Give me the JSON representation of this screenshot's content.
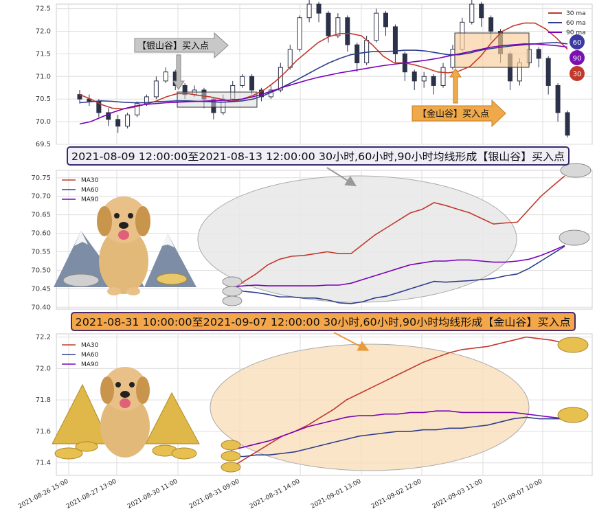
{
  "chart_data": [
    {
      "type": "candlestick",
      "yticks": [
        "72.5",
        "72.0",
        "71.5",
        "71.0",
        "70.5",
        "70.0",
        "69.5"
      ],
      "ylim": [
        69.5,
        72.6
      ],
      "legend": [
        "30 ma",
        "60 ma",
        "90 ma"
      ],
      "legend_position": "top-right",
      "series_colors": {
        "ma30": "#c0392b",
        "ma60": "#2e3e8c",
        "ma90": "#7a00b8"
      },
      "ma30": [
        70.6,
        70.5,
        70.38,
        70.3,
        70.28,
        70.32,
        70.38,
        70.45,
        70.55,
        70.62,
        70.62,
        70.58,
        70.55,
        70.5,
        70.45,
        70.5,
        70.58,
        70.7,
        70.88,
        71.1,
        71.35,
        71.55,
        71.75,
        71.88,
        71.95,
        71.95,
        71.9,
        71.7,
        71.45,
        71.3,
        71.3,
        71.25,
        71.18,
        71.1,
        71.08,
        71.12,
        71.22,
        71.45,
        71.75,
        72.0,
        72.12,
        72.18,
        72.18,
        72.05,
        71.85,
        71.6
      ],
      "ma60": [
        70.42,
        70.44,
        70.46,
        70.45,
        70.43,
        70.42,
        70.42,
        70.44,
        70.45,
        70.46,
        70.46,
        70.45,
        70.44,
        70.43,
        70.44,
        70.46,
        70.5,
        70.58,
        70.68,
        70.8,
        70.92,
        71.05,
        71.18,
        71.3,
        71.4,
        71.48,
        71.52,
        71.55,
        71.55,
        71.56,
        71.58,
        71.58,
        71.56,
        71.52,
        71.48,
        71.48,
        71.52,
        71.58,
        71.62,
        71.65,
        71.68,
        71.7,
        71.72,
        71.74,
        71.75,
        71.72
      ],
      "ma90": [
        69.95,
        70.0,
        70.1,
        70.2,
        70.28,
        70.34,
        70.38,
        70.4,
        70.42,
        70.43,
        70.44,
        70.45,
        70.46,
        70.47,
        70.48,
        70.5,
        70.55,
        70.62,
        70.7,
        70.78,
        70.85,
        70.92,
        70.98,
        71.03,
        71.08,
        71.12,
        71.16,
        71.2,
        71.24,
        71.27,
        71.3,
        71.33,
        71.36,
        71.4,
        71.45,
        71.5,
        71.55,
        71.6,
        71.65,
        71.68,
        71.7,
        71.72,
        71.72,
        71.7,
        71.68,
        71.65
      ],
      "candles": [
        [
          70.6,
          70.5,
          70.7,
          70.4
        ],
        [
          70.5,
          70.45,
          70.6,
          70.35
        ],
        [
          70.45,
          70.2,
          70.5,
          70.1
        ],
        [
          70.2,
          70.05,
          70.3,
          69.9
        ],
        [
          70.05,
          69.9,
          70.15,
          69.75
        ],
        [
          69.9,
          70.15,
          70.2,
          69.85
        ],
        [
          70.15,
          70.4,
          70.45,
          70.1
        ],
        [
          70.4,
          70.55,
          70.6,
          70.35
        ],
        [
          70.55,
          70.9,
          71.0,
          70.5
        ],
        [
          70.9,
          71.1,
          71.2,
          70.85
        ],
        [
          71.1,
          70.8,
          71.15,
          70.7
        ],
        [
          70.8,
          70.6,
          70.85,
          70.5
        ],
        [
          70.6,
          70.7,
          70.8,
          70.55
        ],
        [
          70.7,
          70.5,
          70.75,
          70.3
        ],
        [
          70.5,
          70.2,
          70.55,
          70.05
        ],
        [
          70.2,
          70.5,
          70.6,
          70.15
        ],
        [
          70.5,
          70.8,
          70.9,
          70.45
        ],
        [
          70.8,
          71.0,
          71.05,
          70.75
        ],
        [
          71.0,
          70.7,
          71.05,
          70.6
        ],
        [
          70.7,
          70.55,
          70.75,
          70.45
        ],
        [
          70.55,
          70.7,
          70.8,
          70.5
        ],
        [
          70.7,
          71.2,
          71.3,
          70.65
        ],
        [
          71.2,
          71.6,
          71.7,
          71.15
        ],
        [
          71.6,
          72.3,
          72.35,
          71.55
        ],
        [
          72.3,
          72.6,
          72.7,
          72.2
        ],
        [
          72.6,
          72.4,
          72.65,
          72.2
        ],
        [
          72.4,
          71.9,
          72.45,
          71.75
        ],
        [
          71.9,
          72.3,
          72.4,
          71.85
        ],
        [
          72.3,
          71.7,
          72.35,
          71.55
        ],
        [
          71.7,
          71.3,
          71.75,
          71.1
        ],
        [
          71.3,
          71.8,
          71.9,
          71.25
        ],
        [
          71.8,
          72.4,
          72.5,
          71.75
        ],
        [
          72.4,
          72.1,
          72.45,
          71.9
        ],
        [
          72.1,
          71.5,
          72.15,
          71.3
        ],
        [
          71.5,
          71.1,
          71.55,
          70.9
        ],
        [
          71.1,
          70.9,
          71.15,
          70.7
        ],
        [
          70.9,
          71.0,
          71.1,
          70.75
        ],
        [
          71.0,
          70.8,
          71.05,
          70.6
        ],
        [
          70.8,
          71.2,
          71.3,
          70.75
        ],
        [
          71.2,
          71.6,
          71.7,
          71.15
        ],
        [
          71.6,
          72.2,
          72.3,
          71.55
        ],
        [
          72.2,
          72.6,
          72.7,
          72.15
        ],
        [
          72.6,
          72.3,
          72.65,
          72.1
        ],
        [
          72.3,
          72.0,
          72.35,
          71.8
        ],
        [
          72.0,
          71.5,
          72.05,
          71.3
        ],
        [
          71.5,
          70.9,
          71.55,
          70.7
        ],
        [
          70.9,
          71.3,
          71.4,
          70.8
        ],
        [
          71.3,
          71.6,
          71.7,
          71.25
        ],
        [
          71.6,
          71.4,
          71.65,
          71.2
        ],
        [
          71.4,
          70.8,
          71.45,
          70.6
        ],
        [
          70.8,
          70.2,
          70.85,
          70.0
        ],
        [
          70.2,
          69.7,
          70.25,
          69.65
        ]
      ],
      "annotations": [
        "【银山谷】买入点",
        "【金山谷】买入点"
      ],
      "badges": [
        "60",
        "90",
        "30"
      ]
    },
    {
      "type": "line",
      "title": "2021-08-09 12:00:00至2021-08-13 12:00:00 30小时,60小时,90小时均线形成【银山谷】买入点",
      "yticks": [
        "70.75",
        "70.70",
        "70.65",
        "70.60",
        "70.55",
        "70.50",
        "70.45",
        "70.40"
      ],
      "ylim": [
        70.395,
        70.77
      ],
      "series": [
        {
          "name": "MA30",
          "color": "#c0392b",
          "values": [
            70.447,
            70.47,
            70.49,
            70.515,
            70.53,
            70.538,
            70.54,
            70.545,
            70.55,
            70.545,
            70.545,
            70.57,
            70.595,
            70.615,
            70.635,
            70.655,
            70.665,
            70.683,
            70.675,
            70.665,
            70.655,
            70.64,
            70.625,
            70.628,
            70.63,
            70.665,
            70.7,
            70.728,
            70.755
          ]
        },
        {
          "name": "MA60",
          "color": "#2e3e8c",
          "values": [
            70.45,
            70.443,
            70.44,
            70.435,
            70.428,
            70.428,
            70.425,
            70.425,
            70.42,
            70.412,
            70.41,
            70.415,
            70.425,
            70.43,
            70.44,
            70.45,
            70.46,
            70.47,
            70.468,
            70.47,
            70.472,
            70.475,
            70.478,
            70.485,
            70.49,
            70.505,
            70.525,
            70.545,
            70.565
          ]
        },
        {
          "name": "MA90",
          "color": "#7a00b8",
          "values": [
            70.455,
            70.458,
            70.46,
            70.458,
            70.458,
            70.458,
            70.458,
            70.458,
            70.46,
            70.46,
            70.465,
            70.475,
            70.485,
            70.495,
            70.505,
            70.515,
            70.52,
            70.525,
            70.525,
            70.528,
            70.528,
            70.525,
            70.522,
            70.522,
            70.525,
            70.53,
            70.54,
            70.553,
            70.567
          ]
        }
      ]
    },
    {
      "type": "line",
      "title": "2021-08-31 10:00:00至2021-09-07 12:00:00 30小时,60小时,90小时均线形成【金山谷】买入点",
      "yticks": [
        "72.2",
        "72.0",
        "71.8",
        "71.6",
        "71.4"
      ],
      "ylim": [
        71.32,
        72.22
      ],
      "series": [
        {
          "name": "MA30",
          "color": "#c0392b",
          "values": [
            71.37,
            71.42,
            71.47,
            71.52,
            71.57,
            71.6,
            71.64,
            71.69,
            71.74,
            71.8,
            71.84,
            71.88,
            71.92,
            71.96,
            72.0,
            72.04,
            72.07,
            72.1,
            72.12,
            72.13,
            72.14,
            72.16,
            72.18,
            72.2,
            72.19,
            72.18,
            72.16
          ]
        },
        {
          "name": "MA60",
          "color": "#2e3e8c",
          "values": [
            71.44,
            71.44,
            71.45,
            71.45,
            71.46,
            71.47,
            71.49,
            71.51,
            71.53,
            71.55,
            71.57,
            71.58,
            71.59,
            71.6,
            71.6,
            71.61,
            71.61,
            71.62,
            71.62,
            71.63,
            71.64,
            71.66,
            71.68,
            71.69,
            71.68,
            71.68,
            71.68
          ]
        },
        {
          "name": "MA90",
          "color": "#7a00b8",
          "values": [
            71.48,
            71.5,
            71.52,
            71.54,
            71.57,
            71.6,
            71.63,
            71.65,
            71.67,
            71.69,
            71.7,
            71.7,
            71.71,
            71.71,
            71.72,
            71.72,
            71.73,
            71.73,
            71.72,
            71.72,
            71.72,
            71.72,
            71.72,
            71.71,
            71.7,
            71.69,
            71.68
          ]
        }
      ]
    }
  ],
  "xticks": [
    "2021-08-26 15:00",
    "2021-08-27 13:00",
    "2021-08-30 11:00",
    "2021-08-31 09:00",
    "2021-08-31 14:00",
    "2021-09-01 13:00",
    "2021-09-02 12:00",
    "2021-09-03 11:00",
    "2021-09-07 10:00"
  ]
}
